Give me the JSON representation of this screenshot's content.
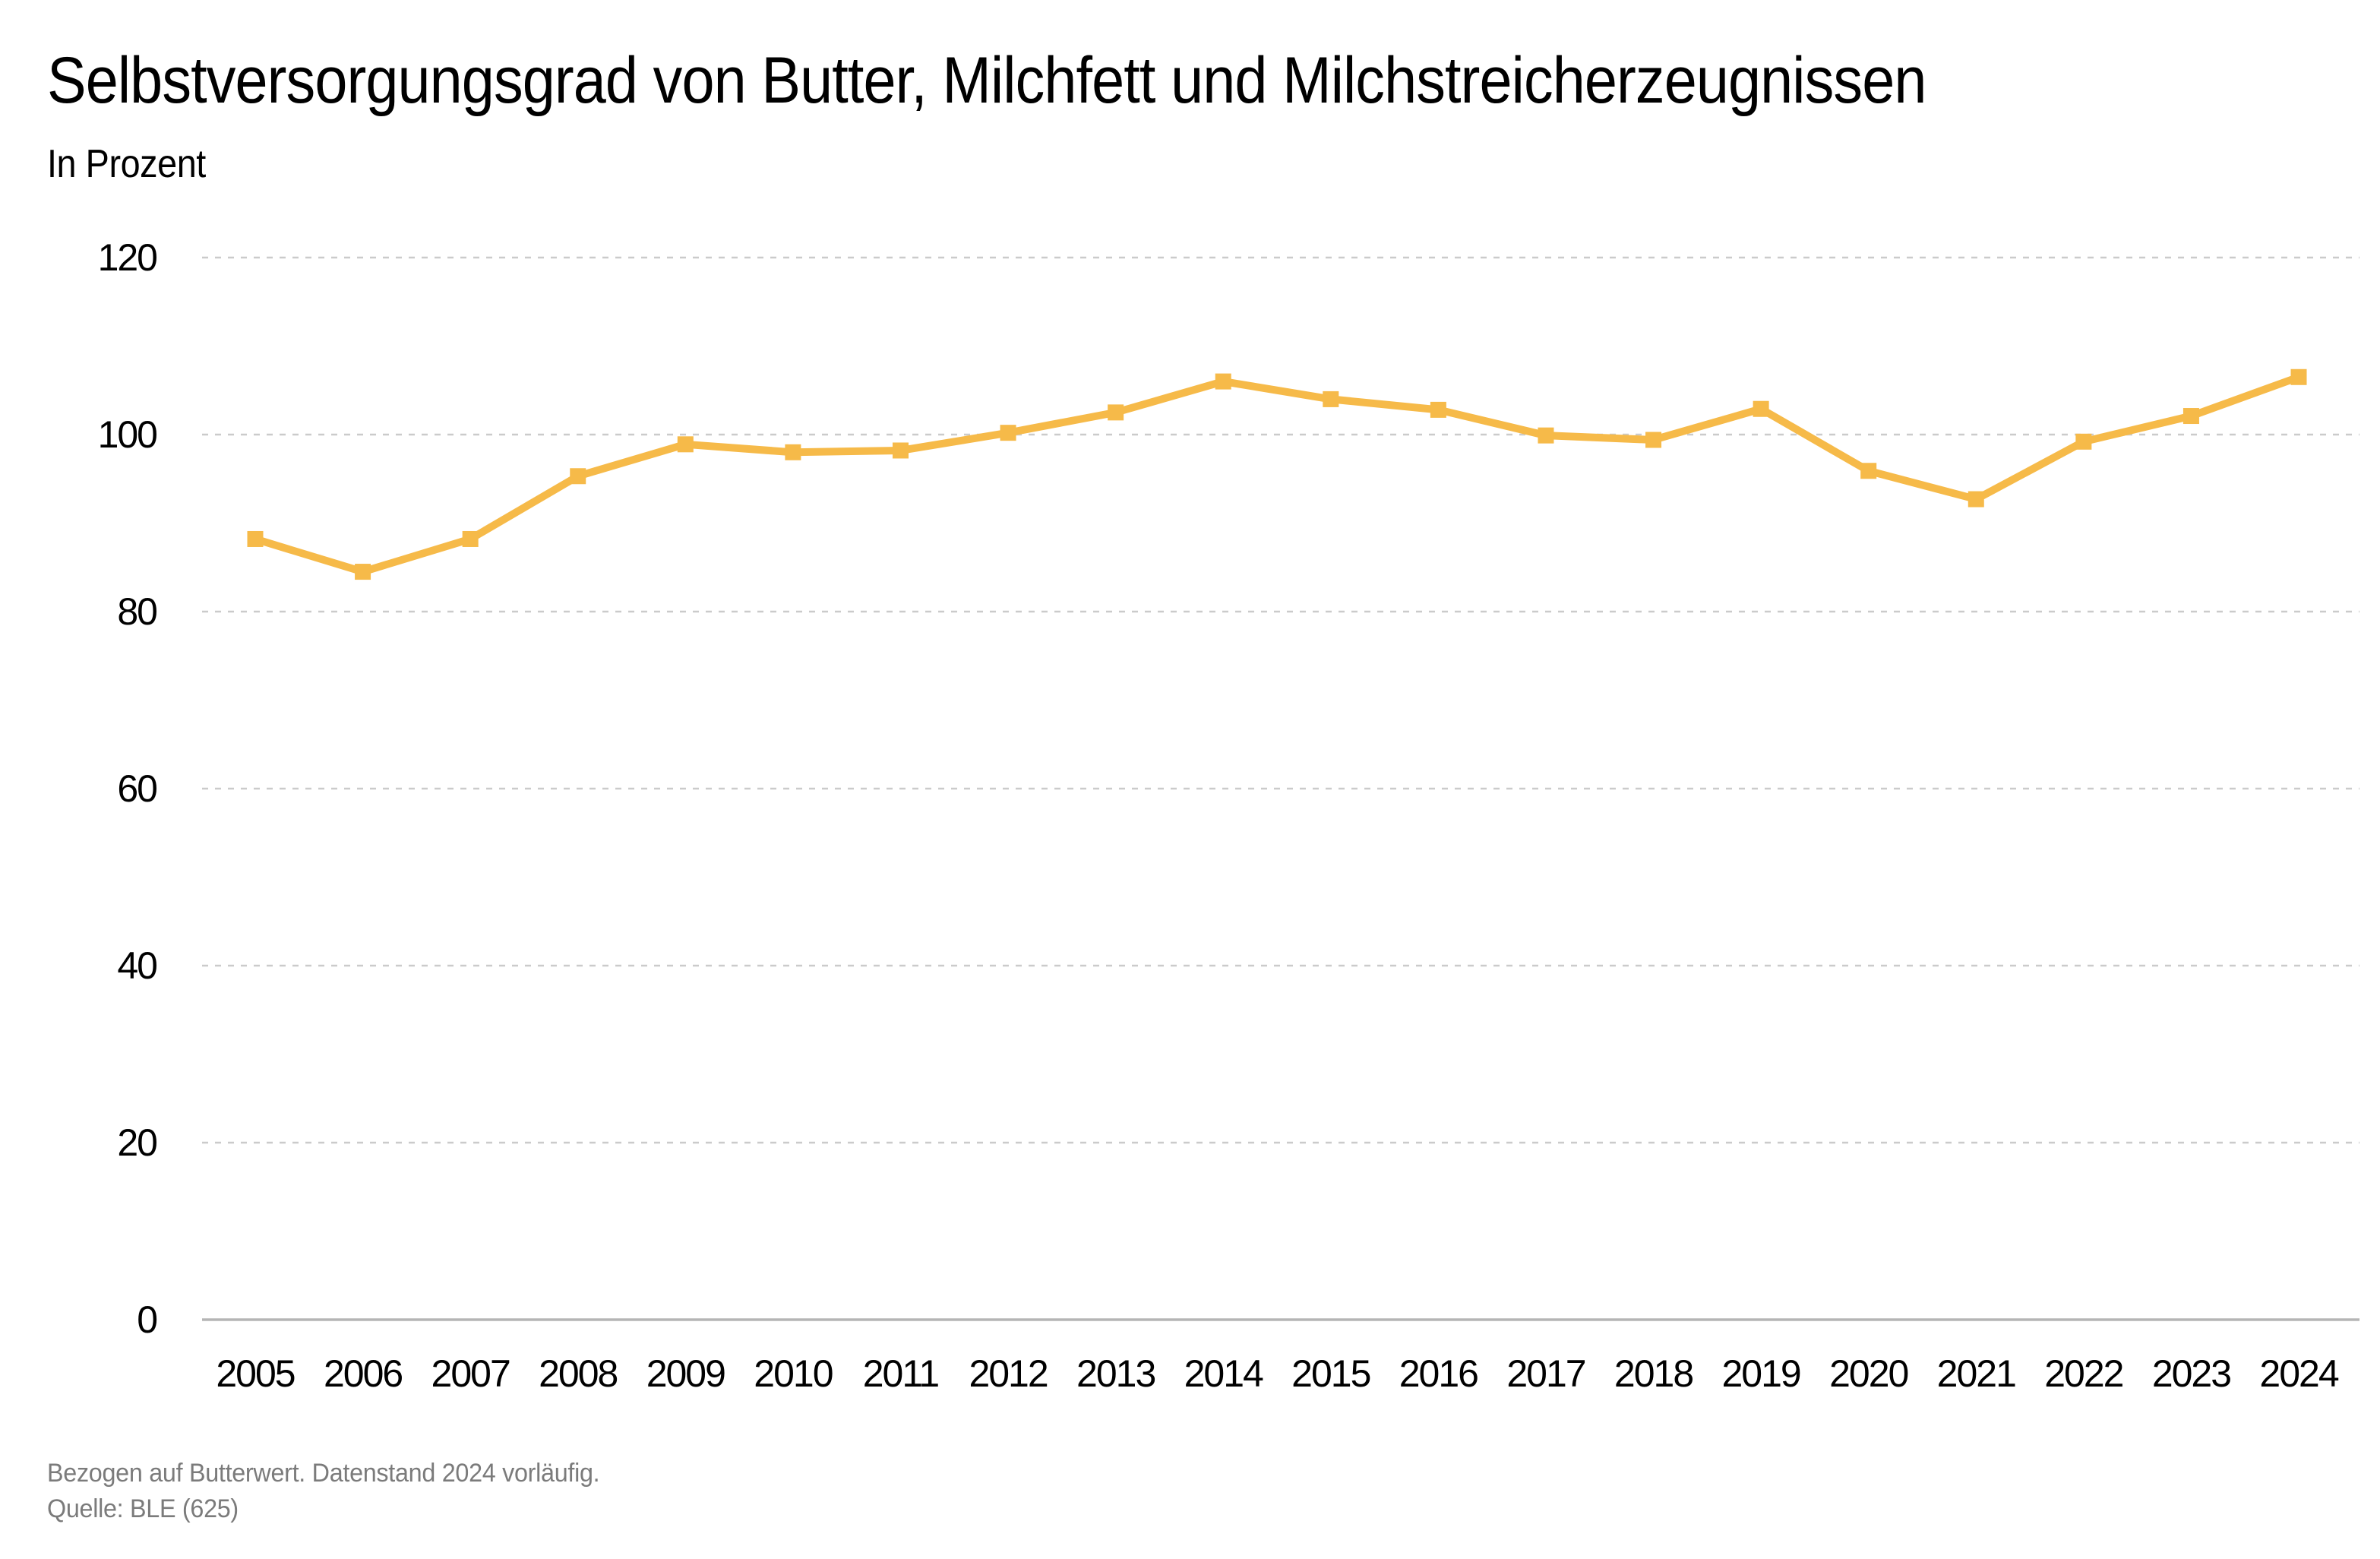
{
  "style": {
    "line_color": "#F6BA49",
    "grid_color": "#CBCBCB",
    "axis_color": "#B5B5B5",
    "text_color": "#000000",
    "muted_text_color": "#7B7B7B"
  },
  "footer": {
    "note": "Bezogen auf Butterwert. Datenstand 2024 vorläufig.",
    "source": "Quelle: BLE (625)"
  },
  "chart_data": {
    "type": "line",
    "title": "Selbstversorgungsgrad von Butter, Milchfett und Milchstreicherzeugnissen",
    "subtitle": "In Prozent",
    "categories": [
      "2005",
      "2006",
      "2007",
      "2008",
      "2009",
      "2010",
      "2011",
      "2012",
      "2013",
      "2014",
      "2015",
      "2016",
      "2017",
      "2018",
      "2019",
      "2020",
      "2021",
      "2022",
      "2023",
      "2024"
    ],
    "values": [
      88.2,
      84.5,
      88.2,
      95.3,
      98.9,
      98.0,
      98.2,
      100.2,
      102.5,
      106.0,
      104.0,
      102.8,
      99.9,
      99.4,
      102.9,
      95.9,
      92.7,
      99.2,
      102.1,
      106.5
    ],
    "ylim": [
      0,
      120
    ],
    "yticks": [
      0,
      20,
      40,
      60,
      80,
      100,
      120
    ],
    "xlabel": "",
    "ylabel": "",
    "grid": "horizontal-dashed",
    "legend": "none",
    "marker": "square"
  }
}
